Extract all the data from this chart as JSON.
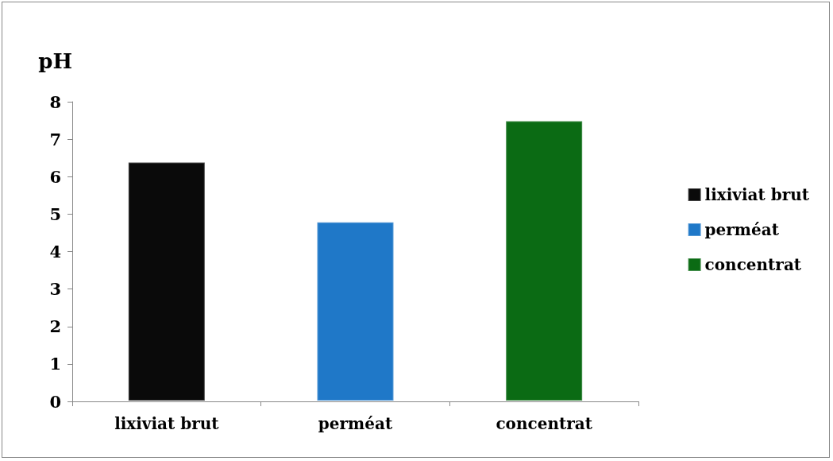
{
  "chart_data": {
    "type": "bar",
    "ylabel": "pH",
    "categories": [
      "lixiviat brut",
      "perméat",
      "concentrat"
    ],
    "series": [
      {
        "name": "lixiviat brut",
        "color": "#0a0a0a",
        "values": [
          6.4,
          null,
          null
        ]
      },
      {
        "name": "perméat",
        "color": "#1f78c8",
        "values": [
          null,
          4.8,
          null
        ]
      },
      {
        "name": "concentrat",
        "color": "#0b6b14",
        "values": [
          null,
          null,
          7.5
        ]
      }
    ],
    "ylim": [
      0,
      8
    ],
    "yticks": [
      0,
      1,
      2,
      3,
      4,
      5,
      6,
      7,
      8
    ],
    "grid": false,
    "legend": "right"
  }
}
